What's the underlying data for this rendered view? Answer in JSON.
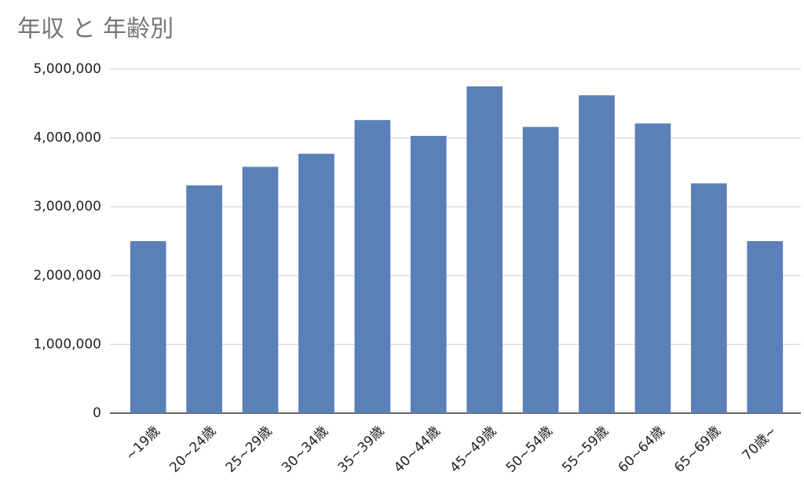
{
  "chart_data": {
    "type": "bar",
    "title": "年収 と 年齢別",
    "categories": [
      "~19歳",
      "20~24歳",
      "25~29歳",
      "30~34歳",
      "35~39歳",
      "40~44歳",
      "45~49歳",
      "50~54歳",
      "55~59歳",
      "60~64歳",
      "65~69歳",
      "70歳~"
    ],
    "values": [
      2500000,
      3310000,
      3580000,
      3770000,
      4260000,
      4030000,
      4750000,
      4160000,
      4620000,
      4210000,
      3340000,
      2500000
    ],
    "color": "#5b80b8",
    "ylim": [
      0,
      5000000
    ],
    "yticks": [
      0,
      {
        "value": 1000000,
        "label": "1,000,000"
      },
      {
        "value": 2000000,
        "label": "2,000,000"
      },
      {
        "value": 3000000,
        "label": "3,000,000"
      },
      {
        "value": 4000000,
        "label": "4,000,000"
      },
      {
        "value": 5000000,
        "label": "5,000,000"
      }
    ],
    "grid": true
  }
}
